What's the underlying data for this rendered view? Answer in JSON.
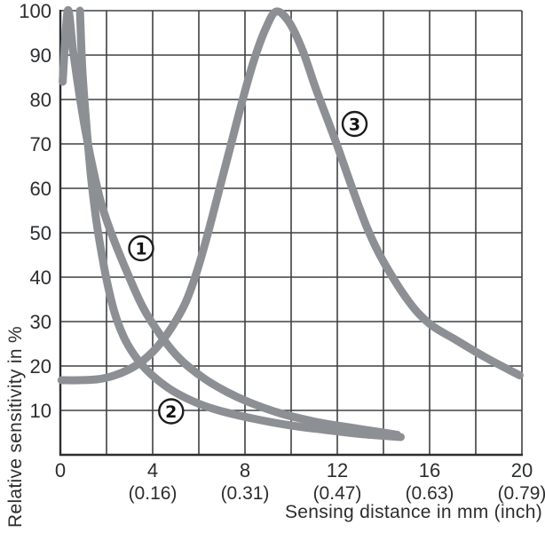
{
  "chart_data": {
    "type": "line",
    "title": "",
    "xlabel": "Sensing distance in mm (inch)",
    "ylabel": "Relative sensitivity in %",
    "xlim": [
      0,
      20
    ],
    "ylim": [
      0,
      100
    ],
    "x_grid_step_mm": 2,
    "y_grid_step_pct": 10,
    "grid": "on",
    "legend_position": "inline-circled-numbers",
    "x_ticks": [
      {
        "mm": "0",
        "inch": ""
      },
      {
        "mm": "4",
        "inch": "(0.16)"
      },
      {
        "mm": "8",
        "inch": "(0.31)"
      },
      {
        "mm": "12",
        "inch": "(0.47)"
      },
      {
        "mm": "16",
        "inch": "(0.63)"
      },
      {
        "mm": "20",
        "inch": "(0.79)"
      }
    ],
    "x_tick_values": [
      0,
      4,
      8,
      12,
      16,
      20
    ],
    "y_ticks": [
      10,
      20,
      30,
      40,
      50,
      60,
      70,
      80,
      90,
      100
    ],
    "series": [
      {
        "name": "curve-1",
        "label": "1",
        "label_pos": {
          "x_mm": 3.5,
          "y_pct": 46.5
        },
        "points": [
          [
            0.1,
            84
          ],
          [
            0.32,
            100
          ],
          [
            0.55,
            91
          ],
          [
            0.8,
            82
          ],
          [
            1.05,
            74
          ],
          [
            1.35,
            66
          ],
          [
            1.75,
            57
          ],
          [
            2.2,
            50
          ],
          [
            2.9,
            41
          ],
          [
            3.6,
            33
          ],
          [
            4.4,
            26.5
          ],
          [
            5.2,
            21.5
          ],
          [
            6.2,
            17.3
          ],
          [
            7.2,
            14.2
          ],
          [
            8.2,
            11.8
          ],
          [
            9.5,
            9.4
          ],
          [
            11,
            7.5
          ],
          [
            12.5,
            6.2
          ],
          [
            14,
            5
          ],
          [
            14.6,
            4.5
          ]
        ]
      },
      {
        "name": "curve-2",
        "label": "2",
        "label_pos": {
          "x_mm": 4.8,
          "y_pct": 9.8
        },
        "points": [
          [
            0.85,
            100
          ],
          [
            0.95,
            87
          ],
          [
            1.1,
            76
          ],
          [
            1.3,
            64
          ],
          [
            1.5,
            55
          ],
          [
            1.7,
            48
          ],
          [
            2.0,
            39.5
          ],
          [
            2.35,
            32
          ],
          [
            2.75,
            26.5
          ],
          [
            3.2,
            22.5
          ],
          [
            3.7,
            19.3
          ],
          [
            4.3,
            16.5
          ],
          [
            5.0,
            14
          ],
          [
            6.0,
            11.5
          ],
          [
            7.0,
            9.8
          ],
          [
            8.5,
            8
          ],
          [
            10,
            6.6
          ],
          [
            11.5,
            5.6
          ],
          [
            13,
            4.7
          ],
          [
            14.75,
            4
          ]
        ]
      },
      {
        "name": "curve-3",
        "label": "3",
        "label_pos": {
          "x_mm": 12.75,
          "y_pct": 74.5
        },
        "points": [
          [
            0.05,
            16.8
          ],
          [
            0.8,
            16.8
          ],
          [
            1.6,
            17
          ],
          [
            2.3,
            17.8
          ],
          [
            3.0,
            19.3
          ],
          [
            3.6,
            21.3
          ],
          [
            4.2,
            24.3
          ],
          [
            4.8,
            28.5
          ],
          [
            5.4,
            34
          ],
          [
            5.9,
            41
          ],
          [
            6.4,
            50
          ],
          [
            6.9,
            60
          ],
          [
            7.4,
            70
          ],
          [
            7.9,
            80
          ],
          [
            8.4,
            89
          ],
          [
            8.9,
            96
          ],
          [
            9.35,
            99.8
          ],
          [
            9.9,
            97.5
          ],
          [
            10.5,
            91
          ],
          [
            11.1,
            82
          ],
          [
            11.9,
            71
          ],
          [
            12.65,
            60
          ],
          [
            13.3,
            51
          ],
          [
            14.0,
            43.5
          ],
          [
            15.1,
            34.5
          ],
          [
            16.0,
            29.5
          ],
          [
            17.1,
            26
          ],
          [
            18.4,
            22
          ],
          [
            19.9,
            17.9
          ]
        ]
      }
    ],
    "colors": {
      "curve": "#8c9094",
      "grid": "#3e4043",
      "axis": "#2c2e31",
      "text": "#2b2d2f",
      "label_circle_fill": "#ffffff",
      "label_circle_stroke": "#1c1c1c",
      "background": "#ffffff"
    }
  }
}
